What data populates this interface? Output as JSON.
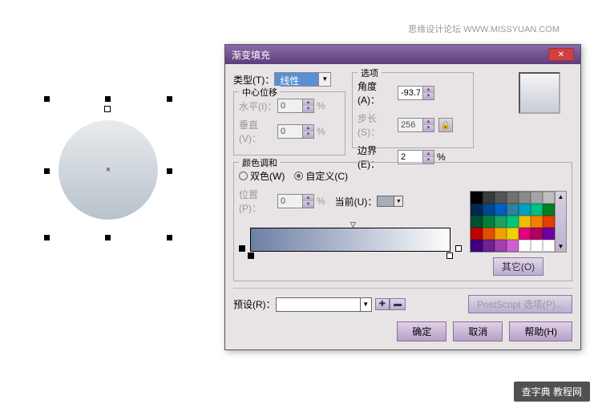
{
  "watermark": {
    "top": "思缘设计论坛  WWW.MISSYUAN.COM",
    "bottom": "查字典 教程网"
  },
  "dialog": {
    "title": "渐变填充",
    "type_label": "类型(T)：",
    "type_value": "线性",
    "center_offset_label": "中心位移",
    "horizontal_label": "水平(I)：",
    "horizontal_value": "0",
    "vertical_label": "垂直(V)：",
    "vertical_value": "0",
    "options_label": "选项",
    "angle_label": "角度(A)：",
    "angle_value": "-93.7",
    "step_label": "步长(S)：",
    "step_value": "256",
    "edge_label": "边界(E)：",
    "edge_value": "2",
    "percent": "%",
    "color_blend_label": "颜色调和",
    "twocolor_label": "双色(W)",
    "custom_label": "自定义(C)",
    "position_label": "位置(P)：",
    "position_value": "0",
    "current_label": "当前(U)：",
    "others_btn": "其它(O)",
    "preset_label": "预设(R)：",
    "ps_options": "PostScript 选项(P)...",
    "ok": "确定",
    "cancel": "取消",
    "help": "帮助(H)"
  },
  "palette_colors": [
    "#000000",
    "#3a3a3a",
    "#555555",
    "#707070",
    "#8a8a8a",
    "#a4a4a4",
    "#bebebe",
    "#002850",
    "#004890",
    "#0060c0",
    "#3080a0",
    "#00a0c0",
    "#00c080",
    "#008020",
    "#005030",
    "#008040",
    "#20a060",
    "#00c878",
    "#e8c000",
    "#f08000",
    "#e04000",
    "#c00000",
    "#e05000",
    "#f0a000",
    "#f0d000",
    "#e00080",
    "#b00060",
    "#7000a0",
    "#400080",
    "#702090",
    "#a040b0",
    "#d060d0",
    "#ffffff",
    "#ffffff",
    "#ffffff"
  ],
  "colors": {
    "titlebar_start": "#8b6ba8",
    "titlebar_end": "#5e3c7c",
    "accent": "#7050a0",
    "close": "#d04040",
    "gradient_start": "#6e7fa5",
    "gradient_end": "#fdfdfd",
    "dialog_bg": "#e8e4e6"
  }
}
